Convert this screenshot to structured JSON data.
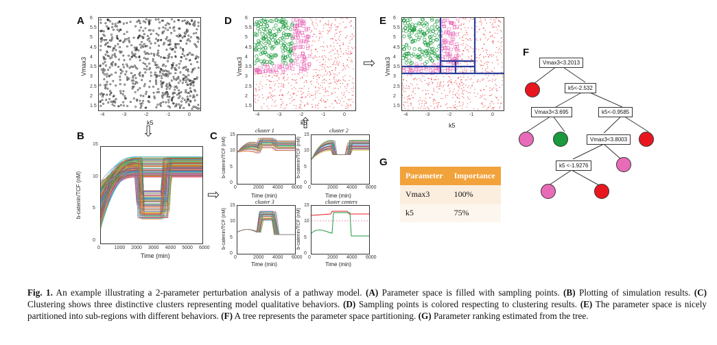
{
  "panels": {
    "A": {
      "letter": "A",
      "ylabel": "Vmax3",
      "xlabel": "k5",
      "xticks": [
        "-4",
        "-3",
        "-2",
        "-1",
        "0"
      ],
      "yticks": [
        "6",
        "5.5",
        "5",
        "4.5",
        "4",
        "3.5",
        "3",
        "2.5",
        "2",
        "1.5"
      ]
    },
    "B": {
      "letter": "B",
      "ylabel": "b-catenin/TCF (nM)",
      "xlabel": "Time (min)",
      "xticks": [
        "0",
        "1000",
        "2000",
        "3000",
        "4000",
        "5000",
        "6000"
      ],
      "yticks": [
        "15",
        "10",
        "5",
        "0"
      ]
    },
    "C": {
      "letter": "C",
      "subplots": [
        {
          "title": "cluster 1",
          "ylabel": "b-catenin/TCF (nM)",
          "xlabel": "Time (min)"
        },
        {
          "title": "cluster 2",
          "ylabel": "b-catenin/TCF (nM)",
          "xlabel": "Time (min)"
        },
        {
          "title": "cluster 3",
          "ylabel": "b-catenin/TCF (nM)",
          "xlabel": "Time (min)"
        },
        {
          "title": "cluster centers",
          "ylabel": "b-catenin/TCF (nM)",
          "xlabel": "Time (min)"
        }
      ],
      "xticks": [
        "0",
        "2000",
        "4000",
        "6000"
      ],
      "yticks": [
        "15",
        "10",
        "5",
        "0"
      ]
    },
    "D": {
      "letter": "D",
      "ylabel": "Vmax3",
      "xlabel": "k5",
      "xticks": [
        "-4",
        "-3",
        "-2",
        "-1",
        "0"
      ],
      "yticks": [
        "6",
        "5.5",
        "5",
        "4.5",
        "4",
        "3.5",
        "3",
        "2.5",
        "2",
        "1.5"
      ]
    },
    "E": {
      "letter": "E",
      "ylabel": "Vmax3",
      "xlabel": "k5",
      "xticks": [
        "-4",
        "-3",
        "-2",
        "-1",
        "0"
      ],
      "yticks": [
        "6",
        "5.5",
        "5",
        "4.5",
        "4",
        "3.5",
        "3",
        "2.5",
        "2",
        "1.5"
      ]
    },
    "F": {
      "letter": "F",
      "nodes": [
        "Vmax3<3.2013",
        "k5<-2.532",
        "Vmax3<3.695",
        "k5<-0.9585",
        "Vmax3<3.8003",
        "k5 <-1.9276"
      ]
    },
    "G": {
      "letter": "G",
      "headers": [
        "Parameter",
        "Importance"
      ],
      "rows": [
        [
          "Vmax3",
          "100%"
        ],
        [
          "k5",
          "75%"
        ]
      ]
    }
  },
  "colors": {
    "red": "#e8171f",
    "green": "#1a9a3c",
    "pink": "#e86bb7",
    "blue": "#2a3d9c",
    "orange": "#f2a23a"
  },
  "caption": {
    "fig": "Fig. 1.",
    "intro": " An example illustrating a 2-parameter perturbation analysis of a pathway model. ",
    "parts": [
      {
        "tag": "(A)",
        "text": " Parameter space is filled with sampling points. "
      },
      {
        "tag": "(B)",
        "text": " Plotting of simulation results. "
      },
      {
        "tag": "(C)",
        "text": " Clustering shows three distinctive clusters representing model qualitative behaviors. "
      },
      {
        "tag": "(D)",
        "text": " Sampling points is colored respecting to clustering results. "
      },
      {
        "tag": "(E)",
        "text": " The parameter space is nicely partitioned into sub-regions with different behaviors. "
      },
      {
        "tag": "(F)",
        "text": " A tree represents the parameter space partitioning. "
      },
      {
        "tag": "(G)",
        "text": " Parameter ranking estimated from the tree."
      }
    ]
  }
}
